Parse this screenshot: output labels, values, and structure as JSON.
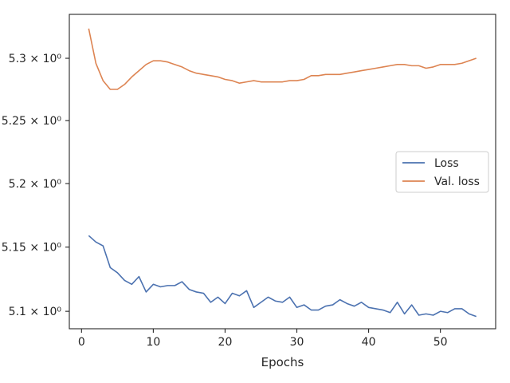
{
  "chart_data": {
    "type": "line",
    "xlabel": "Epochs",
    "ylabel": "",
    "yscale": "log",
    "xlim": [
      -1.7,
      57.7
    ],
    "ylim": [
      5.0865,
      5.3355
    ],
    "x_ticks": [
      0,
      10,
      20,
      30,
      40,
      50
    ],
    "y_ticks": [
      {
        "value": 5.1,
        "label": "5.1 × 10⁰"
      },
      {
        "value": 5.15,
        "label": "5.15 × 10⁰"
      },
      {
        "value": 5.2,
        "label": "5.2 × 10⁰"
      },
      {
        "value": 5.25,
        "label": "5.25 × 10⁰"
      },
      {
        "value": 5.3,
        "label": "5.3 × 10⁰"
      }
    ],
    "grid": false,
    "legend": "center-right",
    "x": [
      1,
      2,
      3,
      4,
      5,
      6,
      7,
      8,
      9,
      10,
      11,
      12,
      13,
      14,
      15,
      16,
      17,
      18,
      19,
      20,
      21,
      22,
      23,
      24,
      25,
      26,
      27,
      28,
      29,
      30,
      31,
      32,
      33,
      34,
      35,
      36,
      37,
      38,
      39,
      40,
      41,
      42,
      43,
      44,
      45,
      46,
      47,
      48,
      49,
      50,
      51,
      52,
      53,
      54,
      55
    ],
    "series": [
      {
        "name": "Loss",
        "color": "#4c72b0",
        "values": [
          5.159,
          5.154,
          5.151,
          5.134,
          5.13,
          5.124,
          5.121,
          5.127,
          5.115,
          5.121,
          5.119,
          5.12,
          5.12,
          5.123,
          5.117,
          5.115,
          5.114,
          5.107,
          5.111,
          5.106,
          5.114,
          5.112,
          5.116,
          5.103,
          5.107,
          5.111,
          5.108,
          5.107,
          5.111,
          5.103,
          5.105,
          5.101,
          5.101,
          5.104,
          5.105,
          5.109,
          5.106,
          5.104,
          5.107,
          5.103,
          5.102,
          5.101,
          5.099,
          5.107,
          5.098,
          5.105,
          5.097,
          5.098,
          5.097,
          5.1,
          5.099,
          5.102,
          5.102,
          5.098,
          5.096
        ]
      },
      {
        "name": "Val. loss",
        "color": "#dd8452",
        "values": [
          5.324,
          5.296,
          5.282,
          5.275,
          5.275,
          5.279,
          5.285,
          5.29,
          5.295,
          5.298,
          5.298,
          5.297,
          5.295,
          5.293,
          5.29,
          5.288,
          5.287,
          5.286,
          5.285,
          5.283,
          5.282,
          5.28,
          5.281,
          5.282,
          5.281,
          5.281,
          5.281,
          5.281,
          5.282,
          5.282,
          5.283,
          5.286,
          5.286,
          5.287,
          5.287,
          5.287,
          5.288,
          5.289,
          5.29,
          5.291,
          5.292,
          5.293,
          5.294,
          5.295,
          5.295,
          5.294,
          5.294,
          5.292,
          5.293,
          5.295,
          5.295,
          5.295,
          5.296,
          5.298,
          5.3
        ]
      }
    ]
  }
}
